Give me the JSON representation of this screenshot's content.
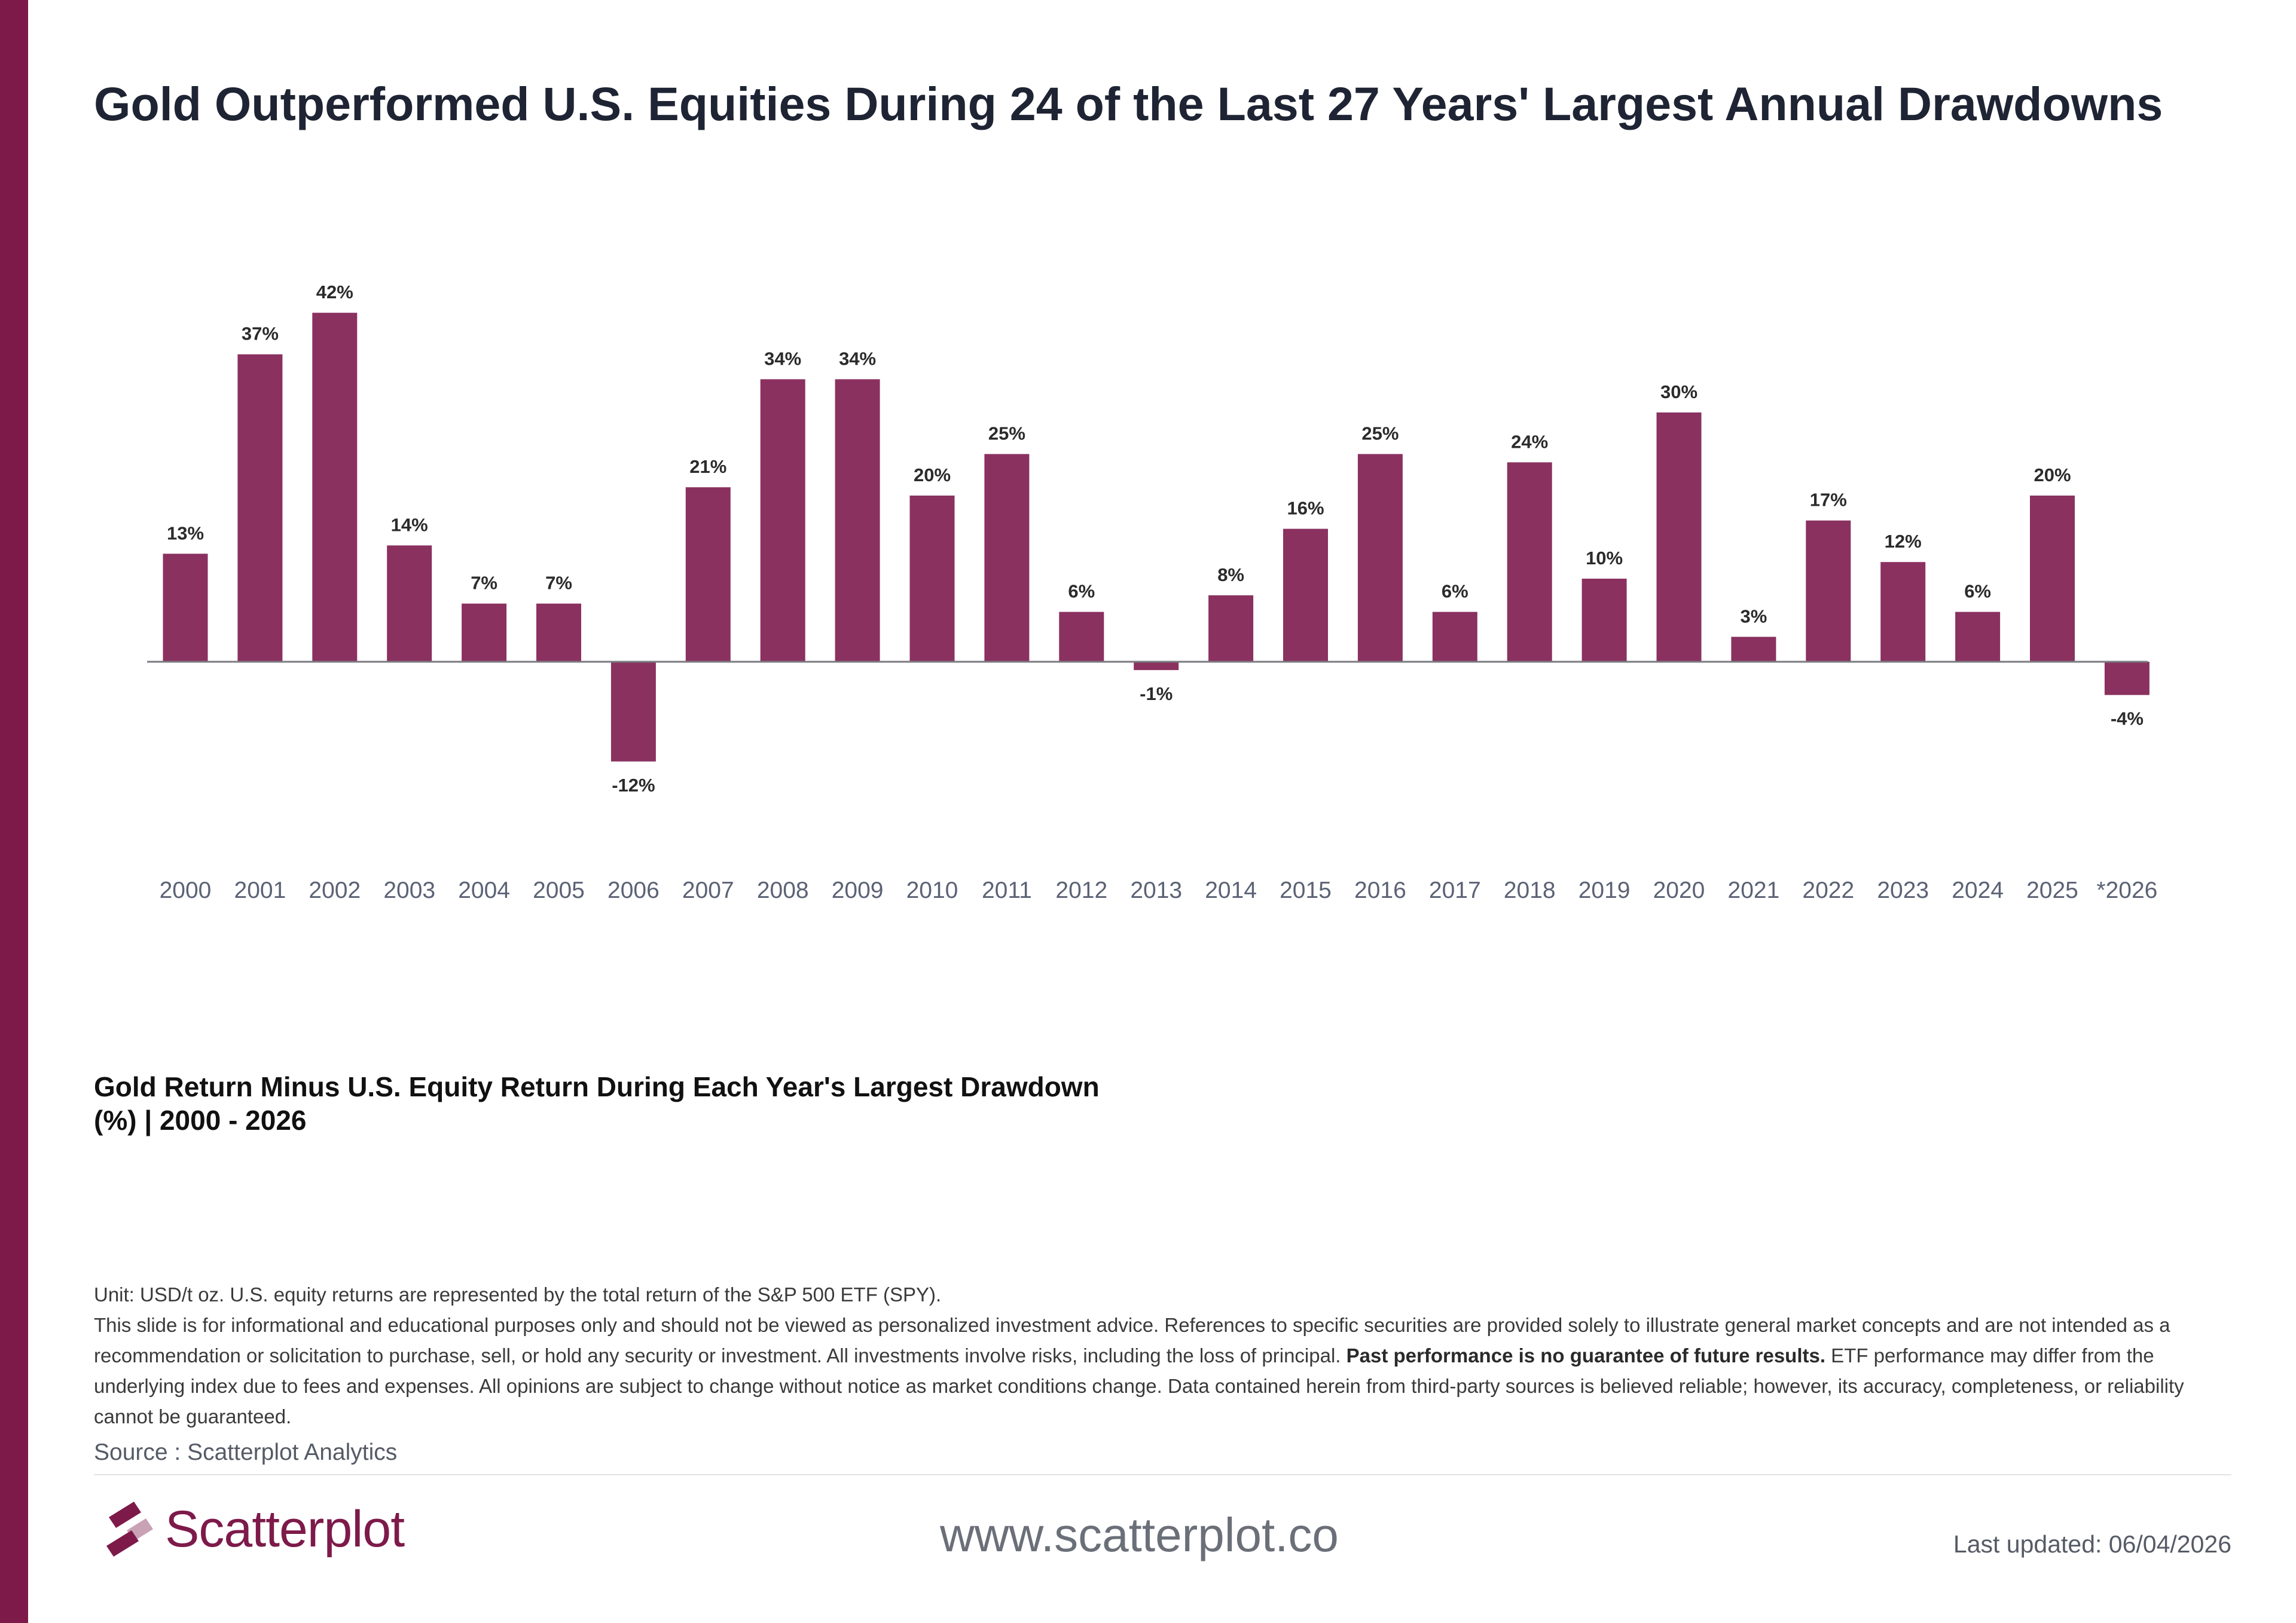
{
  "title": "Gold Outperformed U.S. Equities During 24 of the Last 27 Years' Largest Annual Drawdowns",
  "subtitle": "Gold Return Minus U.S. Equity Return During Each Year's Largest Drawdown\n(%) | 2000 - 2026",
  "colors": {
    "accent": "#7d1a4a",
    "bar": "#8a3160",
    "axis": "#7a7a80",
    "tick_label": "#5b6275"
  },
  "chart_data": {
    "type": "bar",
    "categories": [
      "2000",
      "2001",
      "2002",
      "2003",
      "2004",
      "2005",
      "2006",
      "2007",
      "2008",
      "2009",
      "2010",
      "2011",
      "2012",
      "2013",
      "2014",
      "2015",
      "2016",
      "2017",
      "2018",
      "2019",
      "2020",
      "2021",
      "2022",
      "2023",
      "2024",
      "2025",
      "*2026"
    ],
    "values": [
      13,
      37,
      42,
      14,
      7,
      7,
      -12,
      21,
      34,
      34,
      20,
      25,
      6,
      -1,
      8,
      16,
      25,
      6,
      24,
      10,
      30,
      3,
      17,
      12,
      6,
      20,
      -4
    ],
    "data_labels": [
      "13%",
      "37%",
      "42%",
      "14%",
      "7%",
      "7%",
      "-12%",
      "21%",
      "34%",
      "34%",
      "20%",
      "25%",
      "6%",
      "-1%",
      "8%",
      "16%",
      "25%",
      "6%",
      "24%",
      "10%",
      "30%",
      "3%",
      "17%",
      "12%",
      "6%",
      "20%",
      "-4%"
    ],
    "unit": "%",
    "grid": false,
    "legend": "none"
  },
  "notes": {
    "unit_line": "Unit: USD/t oz. U.S. equity returns are represented by the total return of the S&P 500 ETF (SPY).",
    "disclaimer_before": "This slide is for informational and educational purposes only and should not be viewed as personalized investment advice. References to specific securities are provided solely to illustrate general market concepts and are not intended as a recommendation or solicitation to purchase, sell, or hold any security or investment. All investments involve risks, including the loss of principal. ",
    "disclaimer_bold": "Past performance is no guarantee of future results.",
    "disclaimer_after": " ETF performance may differ from the underlying index due to fees and expenses. All opinions are subject to change without notice as market conditions change. Data contained herein from third-party sources is believed reliable; however, its accuracy, completeness, or reliability cannot be guaranteed."
  },
  "source": "Source : Scatterplot Analytics",
  "footer": {
    "brand": "Scatterplot",
    "url": "www.scatterplot.co",
    "last_updated": "Last updated: 06/04/2026"
  },
  "icons": {
    "logo": "scatterplot-logo-icon"
  }
}
